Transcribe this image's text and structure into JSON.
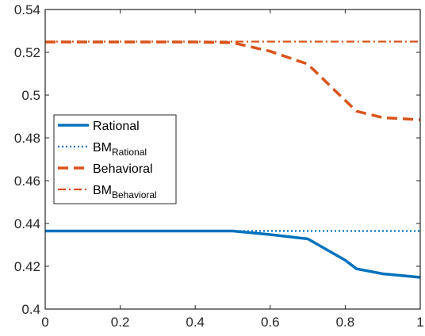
{
  "chart_data": {
    "type": "line",
    "title": "",
    "xlabel": "",
    "ylabel": "",
    "xlim": [
      0,
      1
    ],
    "ylim": [
      0.4,
      0.54
    ],
    "x_ticks": [
      "0",
      "0.2",
      "0.4",
      "0.6",
      "0.8",
      "1"
    ],
    "y_ticks": [
      "0.4",
      "0.42",
      "0.44",
      "0.46",
      "0.48",
      "0.5",
      "0.52",
      "0.54"
    ],
    "grid": false,
    "legend_position": "left-center",
    "series": [
      {
        "name": "Rational",
        "name_sub": "",
        "style": "solid",
        "color": "#0072BD",
        "x": [
          0,
          0.1,
          0.2,
          0.3,
          0.4,
          0.5,
          0.6,
          0.7,
          0.8,
          0.83,
          0.9,
          1.0
        ],
        "y": [
          0.4365,
          0.4365,
          0.4365,
          0.4365,
          0.4365,
          0.4365,
          0.4348,
          0.4328,
          0.4228,
          0.4188,
          0.4165,
          0.4148
        ]
      },
      {
        "name": "BM",
        "name_sub": "Rational",
        "style": "dotted",
        "color": "#0072BD",
        "x": [
          0,
          1
        ],
        "y": [
          0.4365,
          0.4365
        ]
      },
      {
        "name": "Behavioral",
        "name_sub": "",
        "style": "dashed",
        "color": "#D95319",
        "x": [
          0,
          0.1,
          0.2,
          0.3,
          0.4,
          0.5,
          0.6,
          0.7,
          0.8,
          0.83,
          0.9,
          1.0
        ],
        "y": [
          0.5248,
          0.5248,
          0.5248,
          0.5248,
          0.5248,
          0.5245,
          0.5205,
          0.5145,
          0.4975,
          0.4925,
          0.4895,
          0.4885
        ]
      },
      {
        "name": "BM",
        "name_sub": "Behavioral",
        "style": "dashdot",
        "color": "#D95319",
        "x": [
          0,
          1
        ],
        "y": [
          0.525,
          0.525
        ]
      }
    ]
  }
}
